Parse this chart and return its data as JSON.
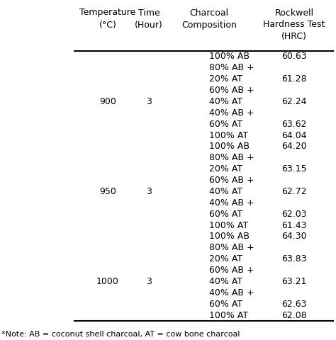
{
  "col_headers_line1": [
    "Temperature",
    "Time",
    "Charcoal",
    "Rockwell"
  ],
  "col_headers_line2": [
    "(°C)",
    "(Hour)",
    "Composition",
    "Hardness Test"
  ],
  "col_headers_line3": [
    "",
    "",
    "",
    "(HRC)"
  ],
  "rows": [
    {
      "comp_line1": "100% AB",
      "comp_line2": "",
      "temp": "",
      "time": "",
      "hrc": "60.63"
    },
    {
      "comp_line1": "80% AB +",
      "comp_line2": "20% AT",
      "temp": "",
      "time": "",
      "hrc": "61.28"
    },
    {
      "comp_line1": "60% AB +",
      "comp_line2": "40% AT",
      "temp": "900",
      "time": "3",
      "hrc": "62.24"
    },
    {
      "comp_line1": "40% AB +",
      "comp_line2": "60% AT",
      "temp": "",
      "time": "",
      "hrc": "63.62"
    },
    {
      "comp_line1": "100% AT",
      "comp_line2": "",
      "temp": "",
      "time": "",
      "hrc": "64.04"
    },
    {
      "comp_line1": "100% AB",
      "comp_line2": "",
      "temp": "",
      "time": "",
      "hrc": "64.20"
    },
    {
      "comp_line1": "80% AB +",
      "comp_line2": "20% AT",
      "temp": "",
      "time": "",
      "hrc": "63.15"
    },
    {
      "comp_line1": "60% AB +",
      "comp_line2": "40% AT",
      "temp": "950",
      "time": "3",
      "hrc": "62.72"
    },
    {
      "comp_line1": "40% AB +",
      "comp_line2": "60% AT",
      "temp": "",
      "time": "",
      "hrc": "62.03"
    },
    {
      "comp_line1": "100% AT",
      "comp_line2": "",
      "temp": "",
      "time": "",
      "hrc": "61.43"
    },
    {
      "comp_line1": "100% AB",
      "comp_line2": "",
      "temp": "",
      "time": "",
      "hrc": "64.30"
    },
    {
      "comp_line1": "80% AB +",
      "comp_line2": "20% AT",
      "temp": "",
      "time": "",
      "hrc": "63.83"
    },
    {
      "comp_line1": "60% AB +",
      "comp_line2": "40% AT",
      "temp": "1000",
      "time": "3",
      "hrc": "63.21"
    },
    {
      "comp_line1": "40% AB +",
      "comp_line2": "60% AT",
      "temp": "",
      "time": "",
      "hrc": "62.63"
    },
    {
      "comp_line1": "100% AT",
      "comp_line2": "",
      "temp": "",
      "time": "",
      "hrc": "62.08"
    }
  ],
  "note": "*Note: AB = coconut shell charcoal, AT = cow bone charcoal",
  "bg_color": "#ffffff",
  "text_color": "#000000",
  "fontsize": 9.0,
  "header_fontsize": 9.0,
  "note_fontsize": 8.0
}
